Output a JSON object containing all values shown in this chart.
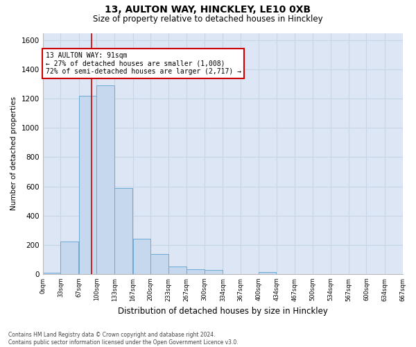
{
  "title_line1": "13, AULTON WAY, HINCKLEY, LE10 0XB",
  "title_line2": "Size of property relative to detached houses in Hinckley",
  "xlabel": "Distribution of detached houses by size in Hinckley",
  "ylabel": "Number of detached properties",
  "footnote": "Contains HM Land Registry data © Crown copyright and database right 2024.\nContains public sector information licensed under the Open Government Licence v3.0.",
  "bin_edges": [
    0,
    33,
    67,
    100,
    133,
    167,
    200,
    233,
    267,
    300,
    334,
    367,
    400,
    434,
    467,
    500,
    534,
    567,
    600,
    634,
    667
  ],
  "bar_heights": [
    10,
    220,
    1220,
    1290,
    590,
    240,
    135,
    50,
    30,
    27,
    0,
    0,
    15,
    0,
    0,
    0,
    0,
    0,
    0,
    0
  ],
  "bar_color": "#c5d8ed",
  "bar_edge_color": "#6aaad4",
  "grid_color": "#c8d4e8",
  "background_color": "#dce6f5",
  "annotation_box_color": "#cc0000",
  "property_size": 91,
  "property_line_color": "#cc0000",
  "annotation_text_line1": "13 AULTON WAY: 91sqm",
  "annotation_text_line2": "← 27% of detached houses are smaller (1,008)",
  "annotation_text_line3": "72% of semi-detached houses are larger (2,717) →",
  "ylim": [
    0,
    1650
  ],
  "yticks": [
    0,
    200,
    400,
    600,
    800,
    1000,
    1200,
    1400,
    1600
  ],
  "tick_labels": [
    "0sqm",
    "33sqm",
    "67sqm",
    "100sqm",
    "133sqm",
    "167sqm",
    "200sqm",
    "233sqm",
    "267sqm",
    "300sqm",
    "334sqm",
    "367sqm",
    "400sqm",
    "434sqm",
    "467sqm",
    "500sqm",
    "534sqm",
    "567sqm",
    "600sqm",
    "634sqm",
    "667sqm"
  ],
  "title1_fontsize": 10,
  "title2_fontsize": 8.5,
  "ylabel_fontsize": 7.5,
  "xlabel_fontsize": 8.5,
  "ytick_fontsize": 7.5,
  "xtick_fontsize": 6,
  "footnote_fontsize": 5.5,
  "ann_fontsize": 7.0
}
